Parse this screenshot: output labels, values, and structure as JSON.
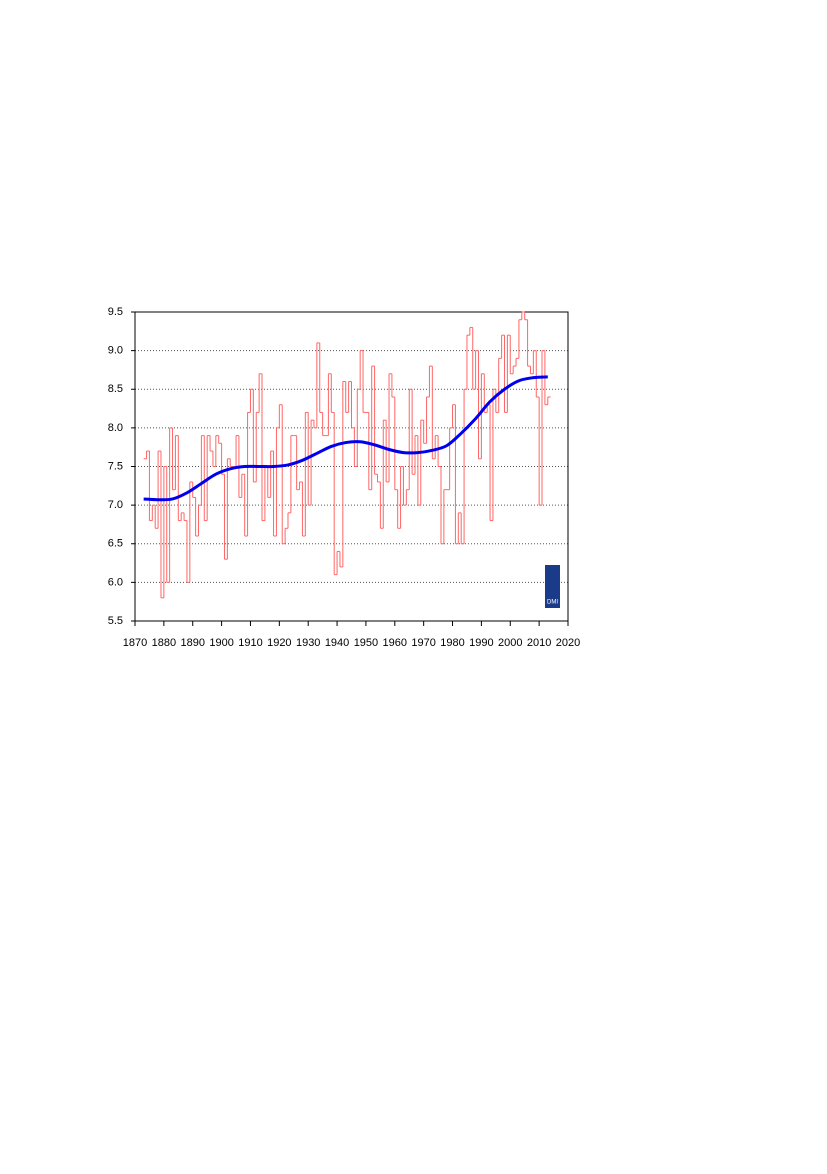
{
  "chart_data": {
    "type": "step-line",
    "logo_text": "DMI",
    "xlim": [
      1870,
      2020
    ],
    "xticks": [
      1870,
      1880,
      1890,
      1900,
      1910,
      1920,
      1930,
      1940,
      1950,
      1960,
      1970,
      1980,
      1990,
      2000,
      2010,
      2020
    ],
    "ylim": [
      5.5,
      9.5
    ],
    "yticks": [
      5.5,
      {
        "value": 6,
        "label": "6.0"
      },
      6.5,
      {
        "value": 7,
        "label": "7.0"
      },
      7.5,
      {
        "value": 8,
        "label": "8.0"
      },
      8.5,
      {
        "value": 9,
        "label": "9.0"
      },
      9.5
    ],
    "grid": true,
    "series": [
      {
        "color": "#ff6666",
        "x": [
          1873,
          1874,
          1875,
          1876,
          1877,
          1878,
          1879,
          1880,
          1881,
          1882,
          1883,
          1884,
          1885,
          1886,
          1887,
          1888,
          1889,
          1890,
          1891,
          1892,
          1893,
          1894,
          1895,
          1896,
          1897,
          1898,
          1899,
          1900,
          1901,
          1902,
          1903,
          1904,
          1905,
          1906,
          1907,
          1908,
          1909,
          1910,
          1911,
          1912,
          1913,
          1914,
          1915,
          1916,
          1917,
          1918,
          1919,
          1920,
          1921,
          1922,
          1923,
          1924,
          1925,
          1926,
          1927,
          1928,
          1929,
          1930,
          1931,
          1932,
          1933,
          1934,
          1935,
          1936,
          1937,
          1938,
          1939,
          1940,
          1941,
          1942,
          1943,
          1944,
          1945,
          1946,
          1947,
          1948,
          1949,
          1950,
          1951,
          1952,
          1953,
          1954,
          1955,
          1956,
          1957,
          1958,
          1959,
          1960,
          1961,
          1962,
          1963,
          1964,
          1965,
          1966,
          1967,
          1968,
          1969,
          1970,
          1971,
          1972,
          1973,
          1974,
          1975,
          1976,
          1977,
          1978,
          1979,
          1980,
          1981,
          1982,
          1983,
          1984,
          1985,
          1986,
          1987,
          1988,
          1989,
          1990,
          1991,
          1992,
          1993,
          1994,
          1995,
          1996,
          1997,
          1998,
          1999,
          2000,
          2001,
          2002,
          2003,
          2004,
          2005,
          2006,
          2007,
          2008,
          2009,
          2010,
          2011,
          2012,
          2013
        ],
        "values": [
          7.6,
          7.7,
          6.8,
          7.0,
          6.7,
          7.7,
          5.8,
          7.5,
          6.0,
          8.0,
          7.2,
          7.9,
          6.8,
          6.9,
          6.8,
          6.0,
          7.3,
          7.1,
          6.6,
          7.0,
          7.9,
          6.8,
          7.9,
          7.7,
          7.5,
          7.9,
          7.8,
          7.4,
          6.3,
          7.6,
          7.5,
          7.5,
          7.9,
          7.1,
          7.4,
          6.6,
          8.2,
          8.5,
          7.3,
          8.2,
          8.7,
          6.8,
          7.5,
          7.1,
          7.7,
          6.6,
          8.0,
          8.3,
          6.5,
          6.7,
          6.9,
          7.9,
          7.9,
          7.2,
          7.3,
          6.6,
          8.2,
          7.0,
          8.1,
          8.0,
          9.1,
          8.2,
          7.9,
          7.9,
          8.7,
          8.2,
          6.1,
          6.4,
          6.2,
          8.6,
          8.2,
          8.6,
          8.0,
          7.5,
          8.5,
          9.0,
          8.2,
          8.2,
          7.2,
          8.8,
          7.4,
          7.3,
          6.7,
          8.1,
          7.3,
          8.7,
          8.4,
          7.2,
          6.7,
          7.5,
          7.0,
          7.2,
          8.5,
          7.4,
          7.9,
          7.0,
          8.1,
          7.8,
          8.4,
          8.8,
          7.6,
          7.9,
          7.5,
          6.5,
          7.2,
          7.2,
          8.0,
          8.3,
          6.5,
          6.9,
          6.5,
          8.5,
          9.2,
          9.3,
          8.5,
          9.0,
          7.6,
          8.7,
          8.2,
          8.3,
          6.8,
          8.5,
          8.2,
          8.9,
          9.2,
          8.2,
          9.2,
          8.7,
          8.8,
          8.9,
          9.4,
          9.5,
          9.4,
          8.8,
          8.7,
          9.0,
          8.4,
          7.0,
          9.0,
          8.3,
          8.4
        ]
      },
      {
        "color": "#0000ee",
        "x": [
          1873,
          1878,
          1883,
          1888,
          1893,
          1898,
          1903,
          1908,
          1913,
          1918,
          1923,
          1928,
          1933,
          1938,
          1943,
          1948,
          1953,
          1958,
          1963,
          1968,
          1973,
          1978,
          1983,
          1988,
          1993,
          1998,
          2003,
          2008,
          2013
        ],
        "values": [
          7.08,
          7.07,
          7.08,
          7.16,
          7.28,
          7.4,
          7.47,
          7.5,
          7.5,
          7.5,
          7.52,
          7.58,
          7.67,
          7.76,
          7.81,
          7.82,
          7.78,
          7.72,
          7.68,
          7.68,
          7.71,
          7.77,
          7.93,
          8.12,
          8.34,
          8.5,
          8.61,
          8.65,
          8.66
        ]
      }
    ]
  }
}
